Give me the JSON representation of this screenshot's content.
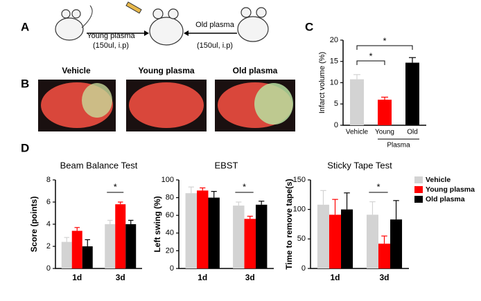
{
  "panel_labels": [
    "A",
    "B",
    "C",
    "D"
  ],
  "diagram": {
    "young_label": "Young plasma",
    "young_dose": "(150ul, i.p)",
    "old_label": "Old plasma",
    "old_dose": "(150ul, i.p)"
  },
  "images": {
    "labels": [
      "Vehicle",
      "Young plasma",
      "Old plasma"
    ]
  },
  "chart_data": [
    {
      "type": "bar",
      "y_label": "Infarct volume (%)",
      "categories": [
        "Vehicle",
        "Young",
        "Old"
      ],
      "group_label": "Plasma",
      "values": [
        10.8,
        6.0,
        14.7
      ],
      "errors": [
        1.1,
        0.6,
        1.2
      ],
      "colors": [
        "#d3d3d3",
        "#ff0000",
        "#000000"
      ],
      "ylim": [
        0,
        20
      ],
      "yticks": [
        0,
        5,
        10,
        15,
        20
      ],
      "annotations": [
        "*",
        "*"
      ]
    },
    {
      "type": "grouped-bar",
      "title": "Beam Balance Test",
      "y_label": "Score (points)",
      "categories": [
        "1d",
        "3d"
      ],
      "series": [
        {
          "color": "#d3d3d3",
          "values": [
            2.4,
            4.0
          ],
          "errors": [
            0.4,
            0.35
          ]
        },
        {
          "color": "#ff0000",
          "values": [
            3.4,
            5.8
          ],
          "errors": [
            0.3,
            0.2
          ]
        },
        {
          "color": "#000000",
          "values": [
            2.0,
            4.0
          ],
          "errors": [
            0.6,
            0.35
          ]
        }
      ],
      "ylim": [
        0,
        8
      ],
      "yticks": [
        0,
        2,
        4,
        6,
        8
      ],
      "annotations": [
        "*"
      ]
    },
    {
      "type": "grouped-bar",
      "title": "EBST",
      "y_label": "Left swing (%)",
      "categories": [
        "1d",
        "3d"
      ],
      "series": [
        {
          "color": "#d3d3d3",
          "values": [
            85,
            71
          ],
          "errors": [
            7,
            4
          ]
        },
        {
          "color": "#ff0000",
          "values": [
            88,
            56
          ],
          "errors": [
            3,
            3
          ]
        },
        {
          "color": "#000000",
          "values": [
            80,
            72
          ],
          "errors": [
            7,
            4
          ]
        }
      ],
      "ylim": [
        0,
        100
      ],
      "yticks": [
        0,
        20,
        40,
        60,
        80,
        100
      ],
      "annotations": [
        "*"
      ]
    },
    {
      "type": "grouped-bar",
      "title": "Sticky Tape Test",
      "y_label": "Time to remove tape(s)",
      "categories": [
        "1d",
        "3d"
      ],
      "series": [
        {
          "name": "Vehicle",
          "color": "#d3d3d3",
          "values": [
            108,
            91
          ],
          "errors": [
            24,
            22
          ]
        },
        {
          "name": "Young plasma",
          "color": "#ff0000",
          "values": [
            91,
            42
          ],
          "errors": [
            26,
            13
          ]
        },
        {
          "name": "Old plasma",
          "color": "#000000",
          "values": [
            100,
            83
          ],
          "errors": [
            28,
            32
          ]
        }
      ],
      "ylim": [
        0,
        150
      ],
      "yticks": [
        0,
        50,
        100,
        150
      ],
      "legend": "right",
      "annotations": [
        "*"
      ]
    }
  ]
}
